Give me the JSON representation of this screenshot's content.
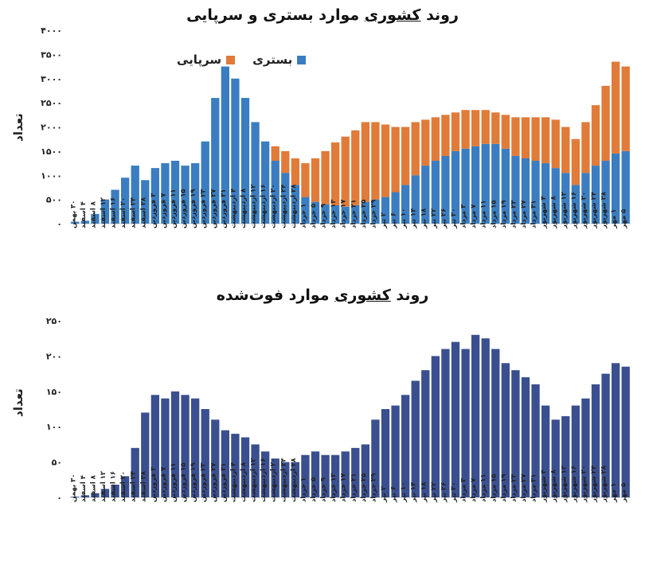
{
  "chart_data": [
    {
      "type": "bar",
      "stacked": true,
      "title_pre": "روند ",
      "title_underlined": "کشوری",
      "title_post": " موارد بستری و سرپایی",
      "ylabel": "تعداد",
      "ylim": [
        0,
        4000
      ],
      "yticks": [
        "۰",
        "۵۰۰",
        "۱۰۰۰",
        "۱۵۰۰",
        "۲۰۰۰",
        "۲۵۰۰",
        "۳۰۰۰",
        "۳۵۰۰",
        "۴۰۰۰"
      ],
      "legend": [
        {
          "name": "بستری",
          "color": "#3b7dc0"
        },
        {
          "name": "سرپایی",
          "color": "#e07b39"
        }
      ],
      "x_tick_labels": [
        "۳۰ بهمن",
        "۴ اسفند",
        "۸ اسفند",
        "۱۲ اسفند",
        "۱۶ اسفند",
        "۲۰ اسفند",
        "۲۴ اسفند",
        "۲۸ اسفند",
        "۳ فروردین",
        "۷ فروردین",
        "۱۱ فروردین",
        "۱۵ فروردین",
        "۱۹ فروردین",
        "۲۳ فروردین",
        "۲۷ فروردین",
        "۳۱ فروردین",
        "۴ اردیبهشت",
        "۸ اردیبهشت",
        "۱۲ اردیبهشت",
        "۱۶ اردیبهشت",
        "۲۰ اردیبهشت",
        "۲۴ اردیبهشت",
        "۲۸ اردیبهشت",
        "۱ خرداد",
        "۵ خرداد",
        "۹ خرداد",
        "۱۳ خرداد",
        "۱۷ خرداد",
        "۲۱ خرداد",
        "۲۵ خرداد",
        "۲۹ خرداد",
        "۲ تیر",
        "۶ تیر",
        "۱۰ تیر",
        "۱۴ تیر",
        "۱۸ تیر",
        "۲۲ تیر",
        "۲۶ تیر",
        "۳۰ تیر",
        "۳ مرداد",
        "۷ مرداد",
        "۱۱ مرداد",
        "۱۵ مرداد",
        "۱۹ مرداد",
        "۲۳ مرداد",
        "۲۷ مرداد",
        "۳۱ مرداد",
        "۴ شهریور",
        "۸ شهریور",
        "۱۲ شهریور",
        "۱۶ شهریور",
        "۲۰ شهریور",
        "۲۴ شهریور",
        "۲۸ شهریور",
        "۱ مهر",
        "۵ مهر"
      ],
      "series": [
        {
          "name": "بستری",
          "color": "#3b7dc0",
          "values": [
            40,
            60,
            200,
            500,
            700,
            950,
            1200,
            900,
            1150,
            1250,
            1300,
            1200,
            1250,
            1700,
            2600,
            3250,
            3000,
            2600,
            2100,
            1700,
            1300,
            1050,
            800,
            550,
            450,
            400,
            380,
            350,
            380,
            450,
            500,
            550,
            650,
            800,
            1000,
            1200,
            1300,
            1400,
            1500,
            1550,
            1600,
            1650,
            1650,
            1550,
            1400,
            1350,
            1300,
            1250,
            1150,
            1050,
            800,
            1050,
            1200,
            1300,
            1450,
            1500
          ]
        },
        {
          "name": "سرپایی",
          "color": "#e07b39",
          "values": [
            0,
            0,
            0,
            0,
            0,
            0,
            0,
            0,
            0,
            0,
            0,
            0,
            0,
            0,
            0,
            0,
            0,
            0,
            0,
            0,
            300,
            450,
            550,
            700,
            900,
            1100,
            1300,
            1450,
            1550,
            1650,
            1600,
            1500,
            1350,
            1200,
            1100,
            950,
            900,
            850,
            800,
            800,
            750,
            700,
            650,
            700,
            800,
            850,
            900,
            950,
            1000,
            950,
            950,
            1050,
            1250,
            1550,
            1900,
            1750
          ]
        }
      ]
    },
    {
      "type": "bar",
      "title_pre": "روند ",
      "title_underlined": "کشوری",
      "title_post": " موارد فوت‌شده",
      "ylabel": "تعداد",
      "ylim": [
        0,
        250
      ],
      "yticks": [
        "۰",
        "۵۰",
        "۱۰۰",
        "۱۵۰",
        "۲۰۰",
        "۲۵۰"
      ],
      "x_tick_labels": [
        "۳۰ بهمن",
        "۴ اسفند",
        "۸ اسفند",
        "۱۲ اسفند",
        "۱۶ اسفند",
        "۲۰ اسفند",
        "۲۴ اسفند",
        "۲۸ اسفند",
        "۳ فروردین",
        "۷ فروردین",
        "۱۱ فروردین",
        "۱۵ فروردین",
        "۱۹ فروردین",
        "۲۳ فروردین",
        "۲۷ فروردین",
        "۳۱ فروردین",
        "۴ اردیبهشت",
        "۸ اردیبهشت",
        "۱۲ اردیبهشت",
        "۱۶ اردیبهشت",
        "۲۰ اردیبهشت",
        "۲۴ اردیبهشت",
        "۲۸ اردیبهشت",
        "۱ خرداد",
        "۵ خرداد",
        "۹ خرداد",
        "۱۳ خرداد",
        "۱۷ خرداد",
        "۲۱ خرداد",
        "۲۵ خرداد",
        "۲۹ خرداد",
        "۲ تیر",
        "۶ تیر",
        "۱۰ تیر",
        "۱۴ تیر",
        "۱۸ تیر",
        "۲۲ تیر",
        "۲۶ تیر",
        "۳۰ تیر",
        "۳ مرداد",
        "۷ مرداد",
        "۱۱ مرداد",
        "۱۵ مرداد",
        "۱۹ مرداد",
        "۲۳ مرداد",
        "۲۷ مرداد",
        "۳۱ مرداد",
        "۴ شهریور",
        "۸ شهریور",
        "۱۲ شهریور",
        "۱۶ شهریور",
        "۲۰ شهریور",
        "۲۴ شهریور",
        "۲۸ شهریور",
        "۱ مهر",
        "۵ مهر"
      ],
      "series": [
        {
          "name": "",
          "color": "#3a4f8f",
          "values": [
            1,
            3,
            6,
            12,
            18,
            30,
            70,
            120,
            145,
            140,
            150,
            145,
            140,
            125,
            110,
            95,
            90,
            85,
            75,
            65,
            55,
            50,
            50,
            60,
            65,
            60,
            60,
            65,
            70,
            75,
            110,
            125,
            130,
            145,
            165,
            180,
            200,
            210,
            220,
            210,
            230,
            225,
            210,
            190,
            180,
            170,
            160,
            130,
            110,
            115,
            130,
            140,
            160,
            175,
            190,
            185
          ]
        }
      ]
    }
  ]
}
